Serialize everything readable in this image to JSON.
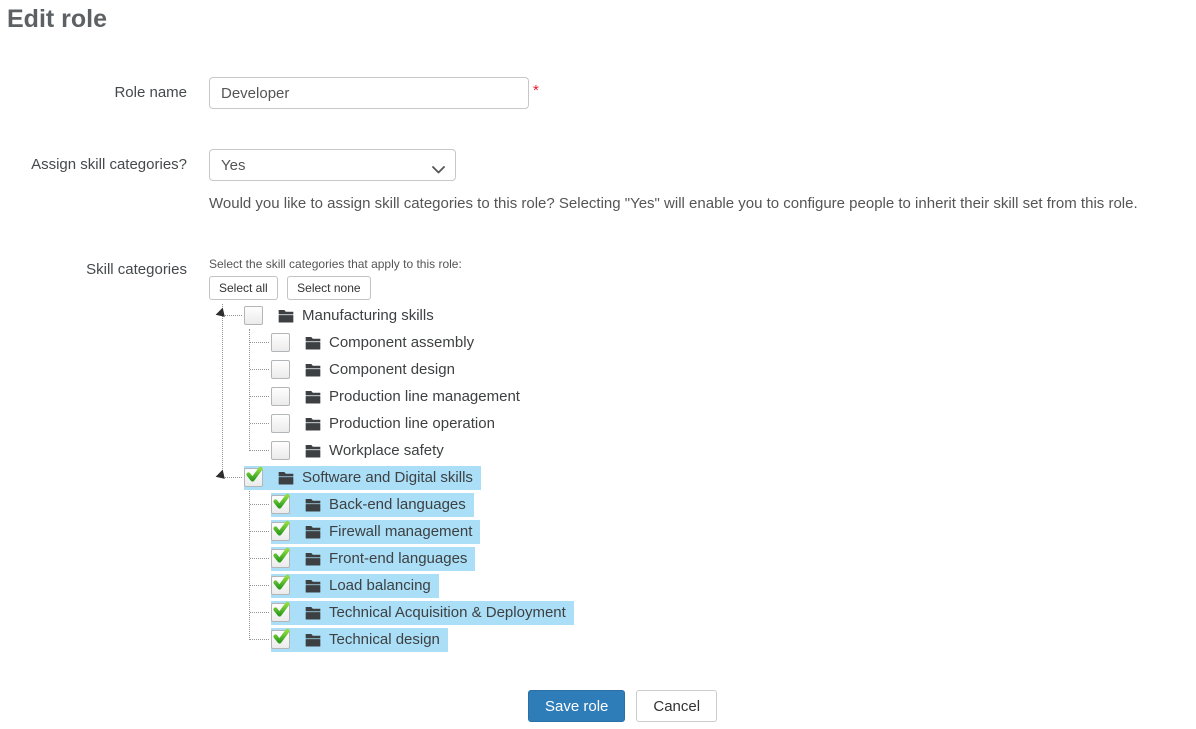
{
  "page": {
    "title": "Edit role"
  },
  "form": {
    "role_name": {
      "label": "Role name",
      "value": "Developer",
      "required_marker": "*"
    },
    "assign": {
      "label": "Assign skill categories?",
      "selected_value": "Yes",
      "help": "Would you like to assign skill categories to this role? Selecting \"Yes\" will enable you to configure people to inherit their skill set from this role."
    },
    "skills": {
      "label": "Skill categories",
      "hint": "Select the skill categories that apply to this role:",
      "select_all_label": "Select all",
      "select_none_label": "Select none",
      "tree": [
        {
          "label": "Manufacturing skills",
          "checked": false,
          "children": [
            {
              "label": "Component assembly",
              "checked": false
            },
            {
              "label": "Component design",
              "checked": false
            },
            {
              "label": "Production line management",
              "checked": false
            },
            {
              "label": "Production line operation",
              "checked": false
            },
            {
              "label": "Workplace safety",
              "checked": false
            }
          ]
        },
        {
          "label": "Software and Digital skills",
          "checked": true,
          "children": [
            {
              "label": "Back-end languages",
              "checked": true
            },
            {
              "label": "Firewall management",
              "checked": true
            },
            {
              "label": "Front-end languages",
              "checked": true
            },
            {
              "label": "Load balancing",
              "checked": true
            },
            {
              "label": "Technical Acquisition & Deployment",
              "checked": true
            },
            {
              "label": "Technical design",
              "checked": true
            }
          ]
        }
      ]
    }
  },
  "actions": {
    "save_label": "Save role",
    "cancel_label": "Cancel"
  },
  "colors": {
    "accent_blue": "#2e7cb8",
    "selection_blue": "#aadff7",
    "check_green": "#2f9e1f",
    "required_red": "#e8192c",
    "folder_gray": "#3d4043"
  },
  "icons": {
    "select_chevron": "chevron-down-icon",
    "tree_folder": "folder-icon",
    "tree_check": "checkmark-icon",
    "tree_expander": "expander-open-icon"
  }
}
